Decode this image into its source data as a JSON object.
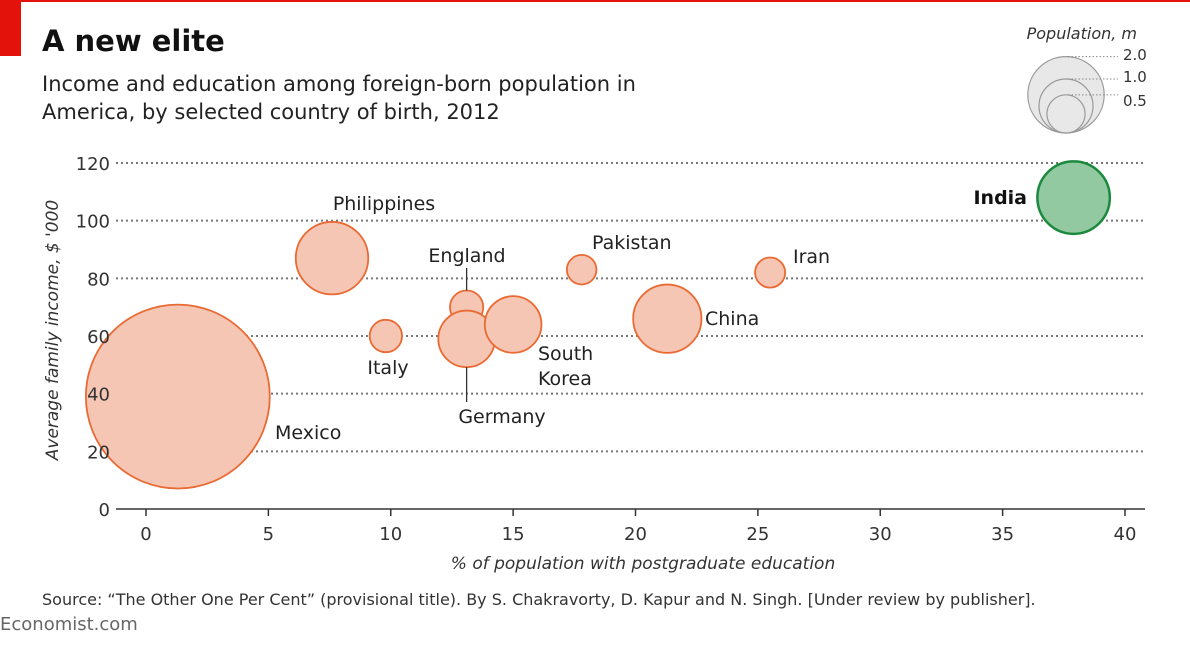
{
  "header": {
    "title": "A new elite",
    "subtitle": "Income and education among foreign-born population in America, by selected country of birth, 2012"
  },
  "footer": {
    "source": "Source: “The Other One Per Cent” (provisional title). By S. Chakravorty, D. Kapur and N. Singh. [Under review by publisher].",
    "brand": "Economist.com"
  },
  "chart_data": {
    "type": "scatter",
    "title": "A new elite",
    "subtitle": "Income and education among foreign-born population in America, by selected country of birth, 2012",
    "xlabel": "% of population with postgraduate education",
    "ylabel": "Average family income, $ '000",
    "xlim": [
      0,
      40
    ],
    "ylim": [
      0,
      120
    ],
    "xticks": [
      "0",
      "5",
      "10",
      "15",
      "20",
      "25",
      "30",
      "35",
      "40"
    ],
    "yticks": [
      "0",
      "20",
      "40",
      "60",
      "80",
      "100",
      "120"
    ],
    "grid": true,
    "size_legend": {
      "title": "Population, m",
      "values": [
        2.0,
        1.0,
        0.5
      ],
      "labels": [
        "2.0",
        "1.0",
        "0.5"
      ]
    },
    "colors": {
      "default_fill": "#f5c6b4",
      "default_stroke": "#ea6a33",
      "highlight_fill": "#93c9a0",
      "highlight_stroke": "#1b8a3e"
    },
    "points": [
      {
        "name": "Mexico",
        "x": 1.3,
        "y": 39,
        "population": 11.6
      },
      {
        "name": "Philippines",
        "x": 7.6,
        "y": 87,
        "population": 1.8
      },
      {
        "name": "Italy",
        "x": 9.8,
        "y": 60,
        "population": 0.36
      },
      {
        "name": "England",
        "x": 13.1,
        "y": 70,
        "population": 0.38
      },
      {
        "name": "Germany",
        "x": 13.1,
        "y": 59,
        "population": 1.1
      },
      {
        "name": "South Korea",
        "x": 15.0,
        "y": 64,
        "population": 1.1
      },
      {
        "name": "Pakistan",
        "x": 17.8,
        "y": 83,
        "population": 0.3
      },
      {
        "name": "China",
        "x": 21.3,
        "y": 66,
        "population": 1.6
      },
      {
        "name": "Iran",
        "x": 25.5,
        "y": 82,
        "population": 0.31
      },
      {
        "name": "India",
        "x": 37.9,
        "y": 108,
        "population": 1.8,
        "highlight": true
      }
    ]
  }
}
